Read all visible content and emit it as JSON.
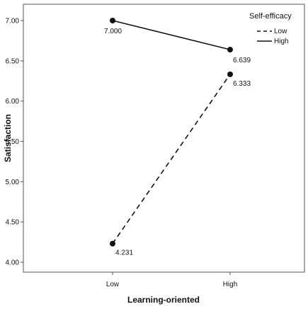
{
  "chart_data": {
    "type": "line",
    "title": "",
    "xlabel": "Learning-oriented",
    "ylabel": "Satisfaction",
    "categories": [
      "Low",
      "High"
    ],
    "ylim": [
      4.0,
      7.1
    ],
    "yticks": [
      "4.00",
      "4.50",
      "5.00",
      "5.50",
      "6.00",
      "6.50",
      "7.00"
    ],
    "grid": false,
    "legend_title": "Self-efficacy",
    "legend_position": "top-right",
    "series": [
      {
        "name": "Low",
        "line_style": "dashed",
        "values": [
          4.231,
          6.333
        ],
        "labels": [
          "4.231",
          "6.333"
        ]
      },
      {
        "name": "High",
        "line_style": "solid",
        "values": [
          7.0,
          6.639
        ],
        "labels": [
          "7.000",
          "6.639"
        ]
      }
    ],
    "colors": {
      "line": "#111111",
      "frame": "#555555"
    }
  }
}
